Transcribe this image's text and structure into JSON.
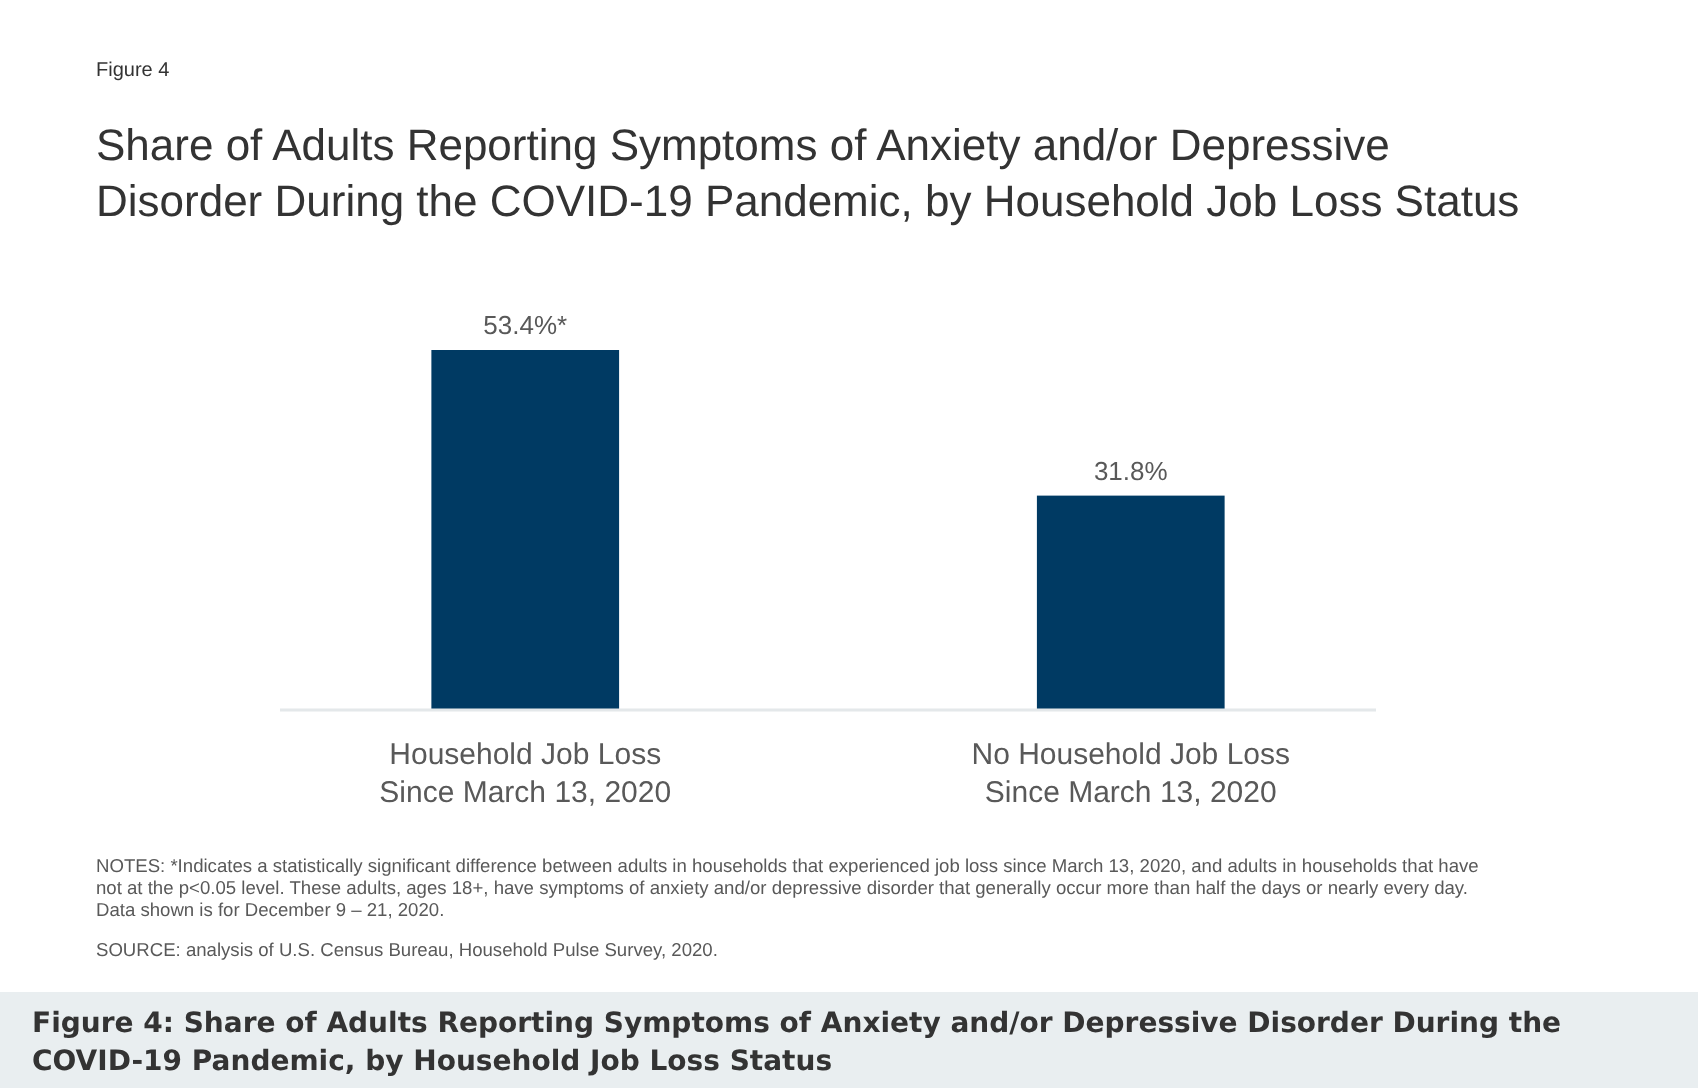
{
  "chart_data": {
    "type": "bar",
    "title": "Share of Adults Reporting Symptoms of Anxiety and/or Depressive Disorder During the COVID-19 Pandemic, by Household Job Loss Status",
    "categories": [
      "Household Job Loss\nSince March 13, 2020",
      "No Household Job Loss\nSince March 13, 2020"
    ],
    "values": [
      53.4,
      31.8
    ],
    "value_labels": [
      "53.4%*",
      "31.8%"
    ],
    "color": "#003a63",
    "annotations": [
      "Figure 4",
      "NOTES: *Indicates a statistically significant difference between adults in households that experienced job loss since March 13, 2020, and adults in households that have not at the p<0.05 level. These adults, ages 18+, have symptoms of anxiety and/or depressive disorder that generally occur more than half the days or nearly every day. Data shown is for December 9 – 21, 2020.",
      "SOURCE: analysis of U.S. Census Bureau, Household Pulse Survey, 2020.",
      "Figure 4: Share of Adults Reporting Symptoms of Anxiety and/or Depressive Disorder During the COVID-19 Pandemic, by Household Job Loss Status"
    ]
  }
}
